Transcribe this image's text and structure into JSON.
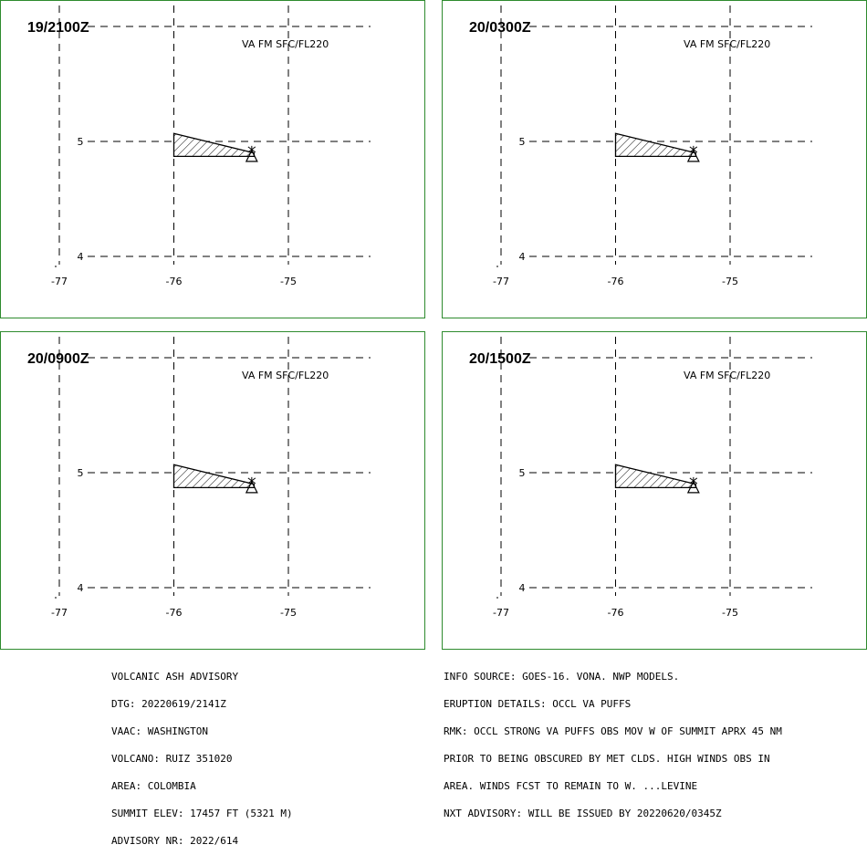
{
  "panels": [
    {
      "time": "19/2100Z",
      "level": "VA FM SFC/FL220",
      "ash_polygon": [
        [
          -76.0,
          5.07
        ],
        [
          -75.3,
          4.9
        ],
        [
          -75.3,
          4.87
        ],
        [
          -76.0,
          4.87
        ]
      ]
    },
    {
      "time": "20/0300Z",
      "level": "VA FM SFC/FL220",
      "ash_polygon": [
        [
          -76.0,
          5.07
        ],
        [
          -75.3,
          4.9
        ],
        [
          -75.3,
          4.87
        ],
        [
          -76.0,
          4.87
        ]
      ]
    },
    {
      "time": "20/0900Z",
      "level": "VA FM SFC/FL220",
      "ash_polygon": [
        [
          -76.0,
          5.07
        ],
        [
          -75.3,
          4.9
        ],
        [
          -75.3,
          4.87
        ],
        [
          -76.0,
          4.87
        ]
      ]
    },
    {
      "time": "20/1500Z",
      "level": "VA FM SFC/FL220",
      "ash_polygon": [
        [
          -76.0,
          5.07
        ],
        [
          -75.3,
          4.9
        ],
        [
          -75.3,
          4.87
        ],
        [
          -76.0,
          4.87
        ]
      ]
    }
  ],
  "map": {
    "lon_ticks": [
      -77,
      -76,
      -75
    ],
    "lat_ticks": [
      4,
      5
    ],
    "lon_labels": [
      "-77",
      "-76",
      "-75"
    ],
    "lat_labels": [
      "4",
      "5"
    ],
    "volcano": {
      "lon": -75.32,
      "lat": 4.89,
      "symbol": "volcano-triangle"
    },
    "frame_color": "#2e8b2e"
  },
  "advisory_left": [
    "VOLCANIC ASH ADVISORY",
    "DTG: 20220619/2141Z",
    "VAAC: WASHINGTON",
    "VOLCANO: RUIZ 351020",
    "AREA: COLOMBIA",
    "SUMMIT ELEV: 17457 FT (5321 M)",
    "ADVISORY NR: 2022/614"
  ],
  "advisory_right": [
    "INFO SOURCE: GOES-16. VONA. NWP MODELS.",
    "ERUPTION DETAILS: OCCL VA PUFFS",
    "RMK: OCCL STRONG VA PUFFS OBS MOV W OF SUMMIT APRX 45 NM",
    "PRIOR TO BEING OBSCURED BY MET CLDS. HIGH WINDS OBS IN",
    "AREA. WINDS FCST TO REMAIN TO W. ...LEVINE",
    "NXT ADVISORY: WILL BE ISSUED BY 20220620/0345Z"
  ]
}
